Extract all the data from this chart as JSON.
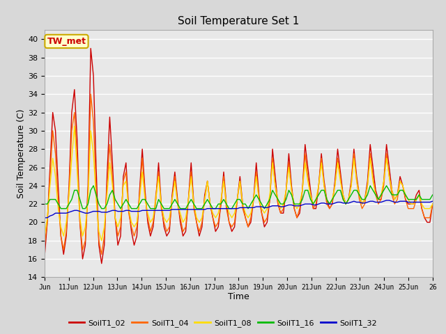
{
  "title": "Soil Temperature Set 1",
  "xlabel": "Time",
  "ylabel": "Soil Temperature (C)",
  "ylim": [
    14,
    41
  ],
  "yticks": [
    14,
    16,
    18,
    20,
    22,
    24,
    26,
    28,
    30,
    32,
    34,
    36,
    38,
    40
  ],
  "annotation": "TW_met",
  "annotation_color": "#cc0000",
  "annotation_bg": "#ffffcc",
  "annotation_border": "#ccaa00",
  "colors": {
    "SoilT1_02": "#cc0000",
    "SoilT1_04": "#ff6600",
    "SoilT1_08": "#ffdd00",
    "SoilT1_16": "#00bb00",
    "SoilT1_32": "#0000cc"
  },
  "fig_bg": "#d8d8d8",
  "plot_bg": "#e8e8e8",
  "line_width": 1.0,
  "xtick_labels": [
    "Jun",
    "11Jun",
    "12Jun",
    "13Jun",
    "14Jun",
    "15Jun",
    "16Jun",
    "17Jun",
    "18Jun",
    "19Jun",
    "20Jun",
    "21Jun",
    "22Jun",
    "23Jun",
    "24Jun",
    "25Jun",
    "26"
  ],
  "T02": [
    16.3,
    20.0,
    26.0,
    32.0,
    30.0,
    24.0,
    18.5,
    16.5,
    18.5,
    24.0,
    32.0,
    34.5,
    29.0,
    20.0,
    16.0,
    17.5,
    24.0,
    39.0,
    36.0,
    26.0,
    17.5,
    15.5,
    17.5,
    25.0,
    31.5,
    26.5,
    20.5,
    17.5,
    18.5,
    25.0,
    26.5,
    21.5,
    19.0,
    17.5,
    18.5,
    23.5,
    28.0,
    23.5,
    20.0,
    18.5,
    19.5,
    22.5,
    26.5,
    22.0,
    19.5,
    18.5,
    19.0,
    23.0,
    25.5,
    22.5,
    20.0,
    18.5,
    19.0,
    22.5,
    26.5,
    22.0,
    20.0,
    18.5,
    19.5,
    23.0,
    24.5,
    22.0,
    20.5,
    19.0,
    19.5,
    22.0,
    25.5,
    22.0,
    20.0,
    19.0,
    19.5,
    22.5,
    25.0,
    22.0,
    20.5,
    19.5,
    20.0,
    22.5,
    26.5,
    23.0,
    21.0,
    19.5,
    20.0,
    22.5,
    28.0,
    25.0,
    22.0,
    21.0,
    21.0,
    23.5,
    27.5,
    24.0,
    21.5,
    20.5,
    21.0,
    23.5,
    28.5,
    26.0,
    23.5,
    21.5,
    21.5,
    24.0,
    27.5,
    24.5,
    22.5,
    21.5,
    22.0,
    24.5,
    28.0,
    25.5,
    23.0,
    22.0,
    22.5,
    24.5,
    28.0,
    25.0,
    23.0,
    22.0,
    22.5,
    24.5,
    28.5,
    26.0,
    23.5,
    22.5,
    22.5,
    24.5,
    28.5,
    26.0,
    23.5,
    22.5,
    23.0,
    25.0,
    24.0,
    22.5,
    22.0,
    22.0,
    22.0,
    23.0,
    23.5,
    21.5,
    20.5,
    20.0,
    20.0,
    22.0
  ],
  "T04": [
    17.5,
    20.0,
    25.0,
    30.0,
    27.5,
    22.5,
    18.5,
    17.0,
    19.0,
    23.5,
    30.0,
    32.0,
    27.0,
    20.0,
    17.0,
    18.0,
    23.0,
    34.0,
    31.0,
    23.5,
    18.0,
    16.5,
    18.5,
    24.0,
    28.5,
    25.0,
    20.5,
    18.5,
    19.5,
    24.5,
    25.5,
    21.0,
    19.5,
    18.5,
    19.5,
    23.0,
    27.0,
    23.0,
    20.5,
    19.0,
    20.0,
    23.0,
    25.5,
    21.5,
    20.0,
    19.0,
    19.5,
    22.5,
    25.0,
    22.0,
    20.5,
    19.0,
    19.5,
    22.5,
    25.5,
    21.5,
    20.0,
    19.0,
    20.0,
    22.5,
    24.5,
    22.0,
    20.5,
    19.5,
    20.0,
    22.0,
    25.0,
    21.5,
    20.0,
    19.5,
    20.0,
    22.5,
    24.5,
    21.5,
    20.5,
    19.5,
    20.5,
    22.5,
    25.5,
    22.5,
    21.0,
    20.0,
    20.5,
    22.5,
    27.0,
    24.0,
    22.0,
    21.0,
    21.5,
    23.5,
    26.5,
    23.5,
    21.5,
    20.5,
    21.5,
    23.5,
    27.5,
    25.0,
    23.0,
    21.5,
    22.0,
    24.0,
    27.0,
    24.0,
    22.0,
    21.5,
    22.0,
    24.0,
    27.0,
    25.0,
    22.5,
    22.0,
    22.5,
    24.0,
    27.5,
    24.5,
    22.5,
    21.5,
    22.0,
    24.0,
    27.5,
    25.0,
    23.0,
    22.0,
    22.5,
    24.0,
    27.5,
    25.0,
    23.0,
    22.0,
    22.5,
    24.5,
    24.0,
    22.5,
    21.5,
    21.5,
    21.5,
    22.5,
    23.0,
    21.5,
    20.5,
    20.5,
    20.5,
    22.0
  ],
  "T08": [
    18.5,
    20.5,
    24.0,
    27.0,
    25.0,
    21.5,
    19.5,
    18.5,
    20.0,
    23.0,
    27.0,
    30.5,
    25.5,
    20.5,
    18.5,
    19.5,
    22.5,
    30.0,
    27.5,
    22.5,
    19.0,
    18.0,
    19.5,
    23.0,
    26.5,
    24.0,
    20.5,
    19.5,
    20.5,
    24.0,
    24.5,
    21.5,
    20.0,
    19.5,
    20.0,
    22.5,
    25.5,
    22.5,
    21.0,
    20.0,
    20.5,
    22.5,
    25.0,
    22.0,
    20.5,
    20.0,
    20.5,
    22.5,
    24.5,
    22.0,
    21.0,
    20.0,
    20.5,
    22.5,
    25.0,
    22.0,
    20.5,
    20.0,
    20.5,
    22.5,
    24.5,
    22.0,
    21.0,
    20.5,
    21.0,
    22.5,
    24.5,
    22.0,
    21.0,
    20.5,
    21.0,
    22.5,
    24.5,
    22.0,
    21.0,
    20.5,
    21.0,
    22.5,
    25.0,
    22.5,
    21.5,
    21.0,
    21.5,
    23.0,
    26.5,
    24.0,
    22.5,
    21.5,
    22.0,
    23.5,
    26.0,
    23.5,
    22.0,
    21.5,
    22.0,
    23.5,
    26.5,
    24.5,
    23.0,
    22.0,
    22.5,
    24.0,
    26.5,
    24.0,
    22.5,
    22.0,
    22.5,
    24.0,
    26.5,
    24.5,
    23.0,
    22.0,
    22.5,
    24.0,
    27.0,
    24.5,
    23.0,
    22.0,
    22.5,
    24.0,
    27.0,
    24.5,
    23.0,
    22.5,
    23.0,
    24.5,
    27.0,
    25.0,
    23.5,
    22.5,
    23.0,
    24.5,
    24.0,
    23.0,
    22.5,
    22.0,
    22.0,
    22.5,
    23.0,
    22.0,
    21.5,
    21.5,
    21.5,
    22.0
  ],
  "T16": [
    22.0,
    22.0,
    22.5,
    22.5,
    22.5,
    22.0,
    21.5,
    21.5,
    21.5,
    22.0,
    22.5,
    23.5,
    23.5,
    22.5,
    21.5,
    21.5,
    22.0,
    23.5,
    24.0,
    23.0,
    22.0,
    21.5,
    21.5,
    22.0,
    23.0,
    23.5,
    22.5,
    22.0,
    21.5,
    22.0,
    22.5,
    22.0,
    21.5,
    21.5,
    21.5,
    22.0,
    22.5,
    22.5,
    22.0,
    21.5,
    21.5,
    21.5,
    22.5,
    22.0,
    21.5,
    21.5,
    21.5,
    22.0,
    22.5,
    22.0,
    21.5,
    21.5,
    21.5,
    22.0,
    22.5,
    22.0,
    21.5,
    21.5,
    21.5,
    22.0,
    22.5,
    22.0,
    21.5,
    21.5,
    22.0,
    22.0,
    22.5,
    22.0,
    21.5,
    21.5,
    22.0,
    22.5,
    22.5,
    22.0,
    22.0,
    21.5,
    22.0,
    22.5,
    23.0,
    22.5,
    22.0,
    21.5,
    22.0,
    22.5,
    23.5,
    23.0,
    22.5,
    22.0,
    22.0,
    22.5,
    23.5,
    23.0,
    22.0,
    22.0,
    22.0,
    22.5,
    23.5,
    23.5,
    22.5,
    22.0,
    22.5,
    23.0,
    23.5,
    23.5,
    22.5,
    22.0,
    22.5,
    23.0,
    23.5,
    23.5,
    22.5,
    22.0,
    22.5,
    23.0,
    23.5,
    23.5,
    23.0,
    22.5,
    22.5,
    23.0,
    24.0,
    23.5,
    23.0,
    22.5,
    23.0,
    23.5,
    24.0,
    23.5,
    23.0,
    23.0,
    23.0,
    23.5,
    23.5,
    23.0,
    22.5,
    22.5,
    22.5,
    22.5,
    23.0,
    22.5,
    22.5,
    22.5,
    22.5,
    23.0
  ],
  "T32": [
    20.5,
    20.5,
    20.7,
    20.8,
    21.0,
    21.0,
    21.0,
    21.0,
    21.0,
    21.1,
    21.2,
    21.3,
    21.3,
    21.2,
    21.1,
    21.0,
    21.0,
    21.1,
    21.2,
    21.2,
    21.2,
    21.1,
    21.1,
    21.1,
    21.2,
    21.3,
    21.3,
    21.2,
    21.2,
    21.2,
    21.3,
    21.3,
    21.2,
    21.2,
    21.2,
    21.2,
    21.3,
    21.3,
    21.3,
    21.3,
    21.3,
    21.3,
    21.3,
    21.3,
    21.3,
    21.3,
    21.3,
    21.4,
    21.4,
    21.4,
    21.4,
    21.4,
    21.4,
    21.4,
    21.4,
    21.4,
    21.4,
    21.4,
    21.4,
    21.4,
    21.5,
    21.5,
    21.5,
    21.5,
    21.5,
    21.5,
    21.5,
    21.5,
    21.5,
    21.5,
    21.5,
    21.5,
    21.6,
    21.6,
    21.6,
    21.6,
    21.6,
    21.6,
    21.7,
    21.7,
    21.7,
    21.6,
    21.6,
    21.7,
    21.8,
    21.8,
    21.8,
    21.7,
    21.7,
    21.8,
    21.9,
    21.9,
    21.8,
    21.8,
    21.8,
    21.9,
    22.0,
    22.0,
    22.0,
    21.9,
    21.9,
    22.0,
    22.1,
    22.1,
    22.0,
    22.0,
    22.0,
    22.1,
    22.2,
    22.2,
    22.1,
    22.1,
    22.1,
    22.2,
    22.3,
    22.2,
    22.2,
    22.1,
    22.1,
    22.2,
    22.3,
    22.3,
    22.2,
    22.2,
    22.2,
    22.3,
    22.4,
    22.4,
    22.3,
    22.2,
    22.2,
    22.3,
    22.3,
    22.3,
    22.2,
    22.2,
    22.2,
    22.2,
    22.2,
    22.2,
    22.2,
    22.2,
    22.2,
    22.3
  ]
}
